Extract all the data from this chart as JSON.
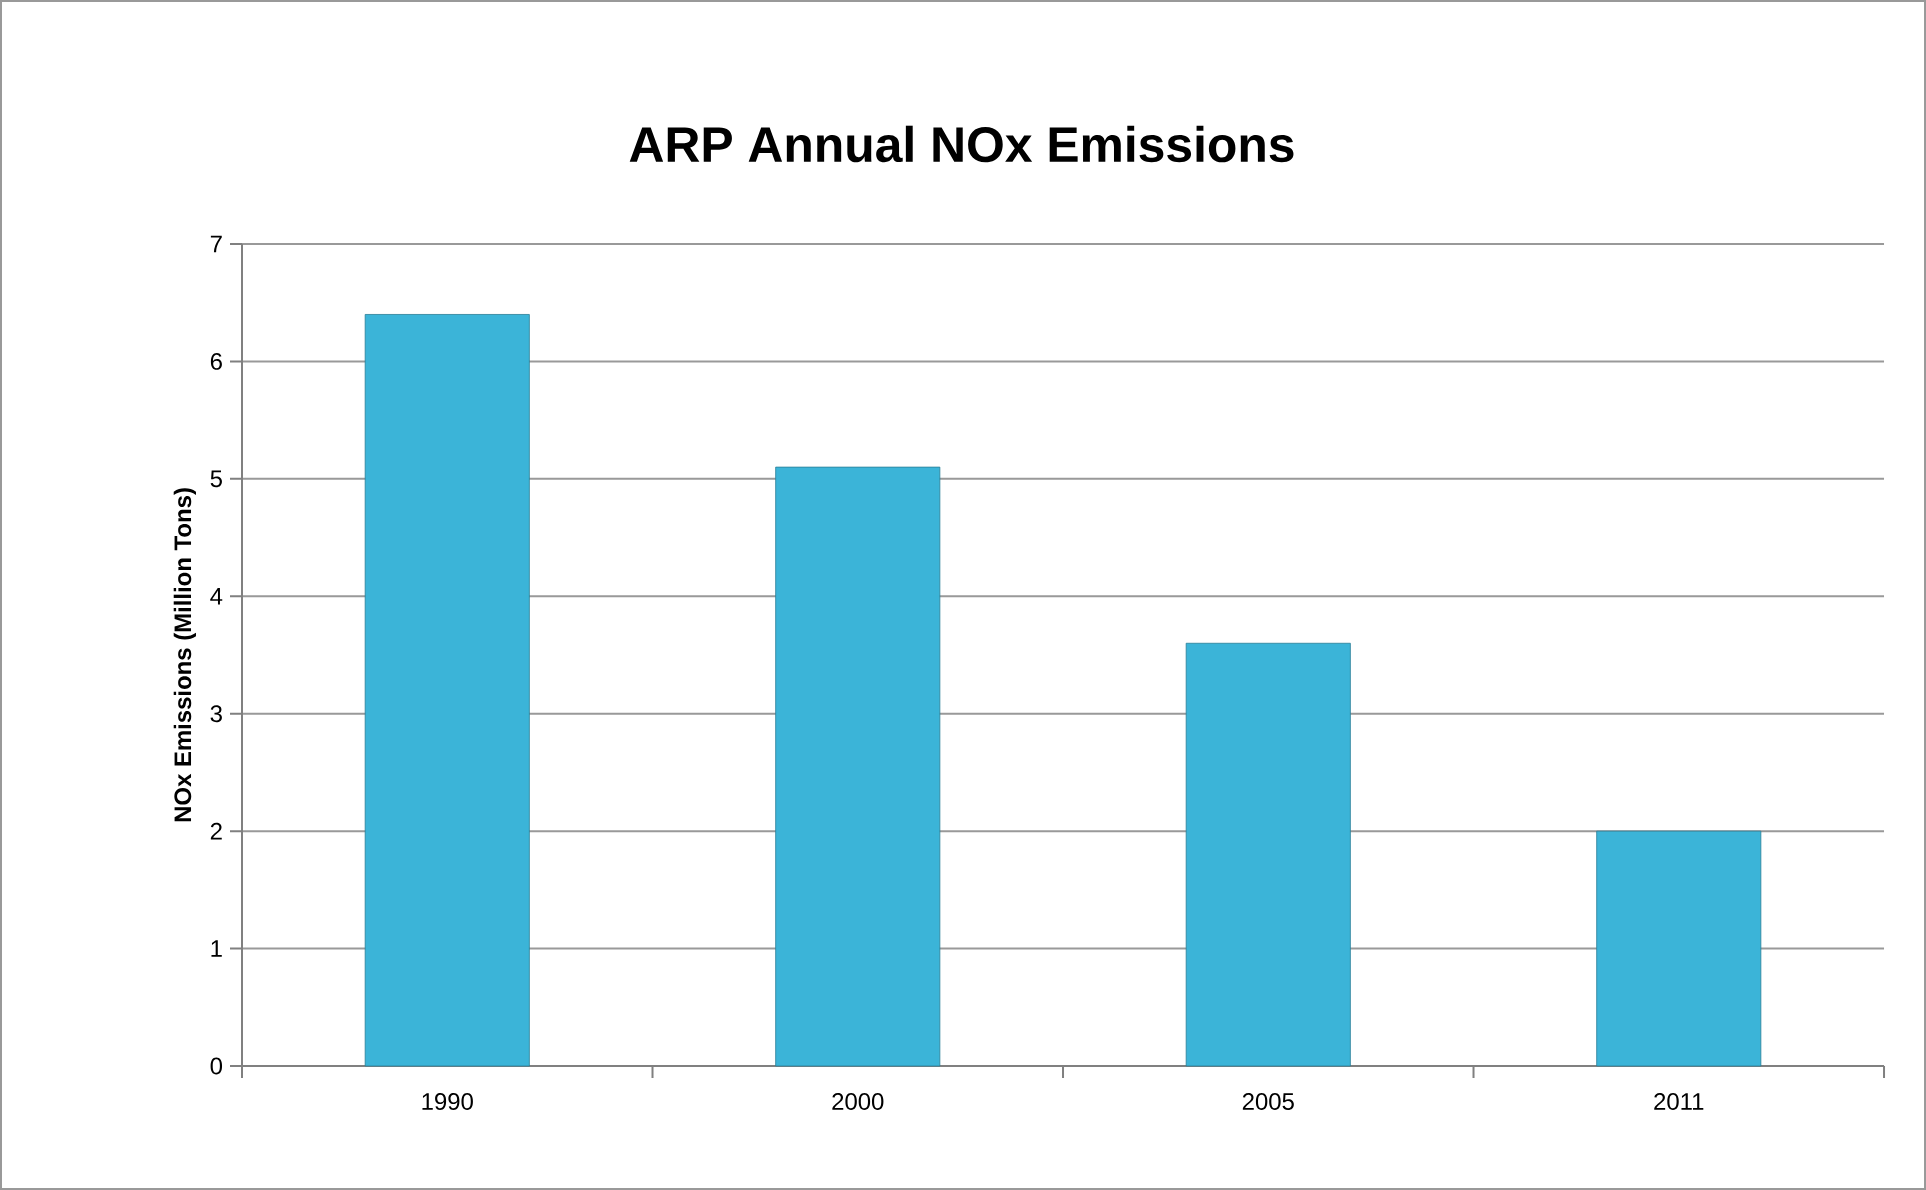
{
  "chart_data": {
    "type": "bar",
    "title": "ARP Annual NOx Emissions",
    "ylabel": "NOx Emissions (Million Tons)",
    "categories": [
      "1990",
      "2000",
      "2005",
      "2011"
    ],
    "values": [
      6.4,
      5.1,
      3.6,
      2.0
    ],
    "color": "#3bb4d8",
    "ylim": [
      0,
      7
    ],
    "yticks": [
      0,
      1,
      2,
      3,
      4,
      5,
      6,
      7
    ],
    "grid": "y"
  }
}
